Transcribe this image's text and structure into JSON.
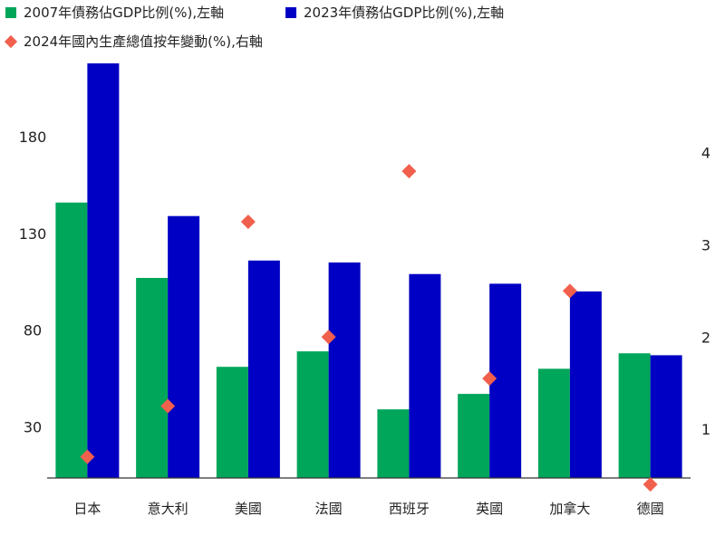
{
  "legend": {
    "s1": "2007年債務佔GDP比例(%),左軸",
    "s2": "2023年債務佔GDP比例(%),左軸",
    "s3": "2024年國內生產總值按年變動(%),右軸"
  },
  "colors": {
    "s1": "#00a65a",
    "s2": "#0000c4",
    "s3": "#f0604d",
    "axis": "#333333"
  },
  "chart_data": {
    "type": "bar",
    "categories": [
      "日本",
      "意大利",
      "美國",
      "法國",
      "西班牙",
      "英國",
      "加拿大",
      "德國"
    ],
    "series": [
      {
        "name": "2007年債務佔GDP比例(%),左軸",
        "type": "bar",
        "axis": "left",
        "values": [
          146,
          107,
          61,
          69,
          39,
          47,
          60,
          68
        ]
      },
      {
        "name": "2023年債務佔GDP比例(%),左軸",
        "type": "bar",
        "axis": "left",
        "values": [
          218,
          139,
          116,
          115,
          109,
          104,
          100,
          67
        ]
      },
      {
        "name": "2024年國內生產總值按年變動(%),右軸",
        "type": "scatter",
        "axis": "right",
        "values": [
          0.7,
          1.25,
          3.25,
          2.0,
          3.8,
          1.55,
          2.5,
          0.4
        ]
      }
    ],
    "y_left": {
      "ticks": [
        30,
        80,
        130,
        180
      ],
      "range": [
        3.5,
        218
      ]
    },
    "y_right": {
      "ticks": [
        1,
        2,
        3,
        4
      ],
      "range": [
        0.47,
        4.97
      ]
    },
    "legend_position": "top-left"
  }
}
